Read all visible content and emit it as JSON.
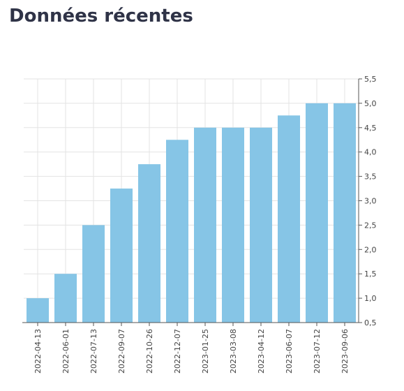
{
  "page": {
    "title": "Données récentes"
  },
  "chart_data": {
    "type": "bar",
    "categories": [
      "2022-04-13",
      "2022-06-01",
      "2022-07-13",
      "2022-09-07",
      "2022-10-26",
      "2022-12-07",
      "2023-01-25",
      "2023-03-08",
      "2023-04-12",
      "2023-06-07",
      "2023-07-12",
      "2023-09-06"
    ],
    "values": [
      1.0,
      1.5,
      2.5,
      3.25,
      3.75,
      4.25,
      4.5,
      4.5,
      4.5,
      4.75,
      5.0,
      5.0
    ],
    "title": "",
    "xlabel": "",
    "ylabel": "",
    "ylim": [
      0.5,
      5.5
    ],
    "yticks": [
      "0,5",
      "1,0",
      "1,5",
      "2,0",
      "2,5",
      "3,0",
      "3,5",
      "4,0",
      "4,5",
      "5,0",
      "5,5"
    ],
    "y_axis_side": "right",
    "grid": true,
    "legend": "none",
    "colors": {
      "bar": "#86c5e6",
      "grid": "#e3e3e3",
      "axis": "#555555",
      "title": "#2f3347"
    }
  }
}
